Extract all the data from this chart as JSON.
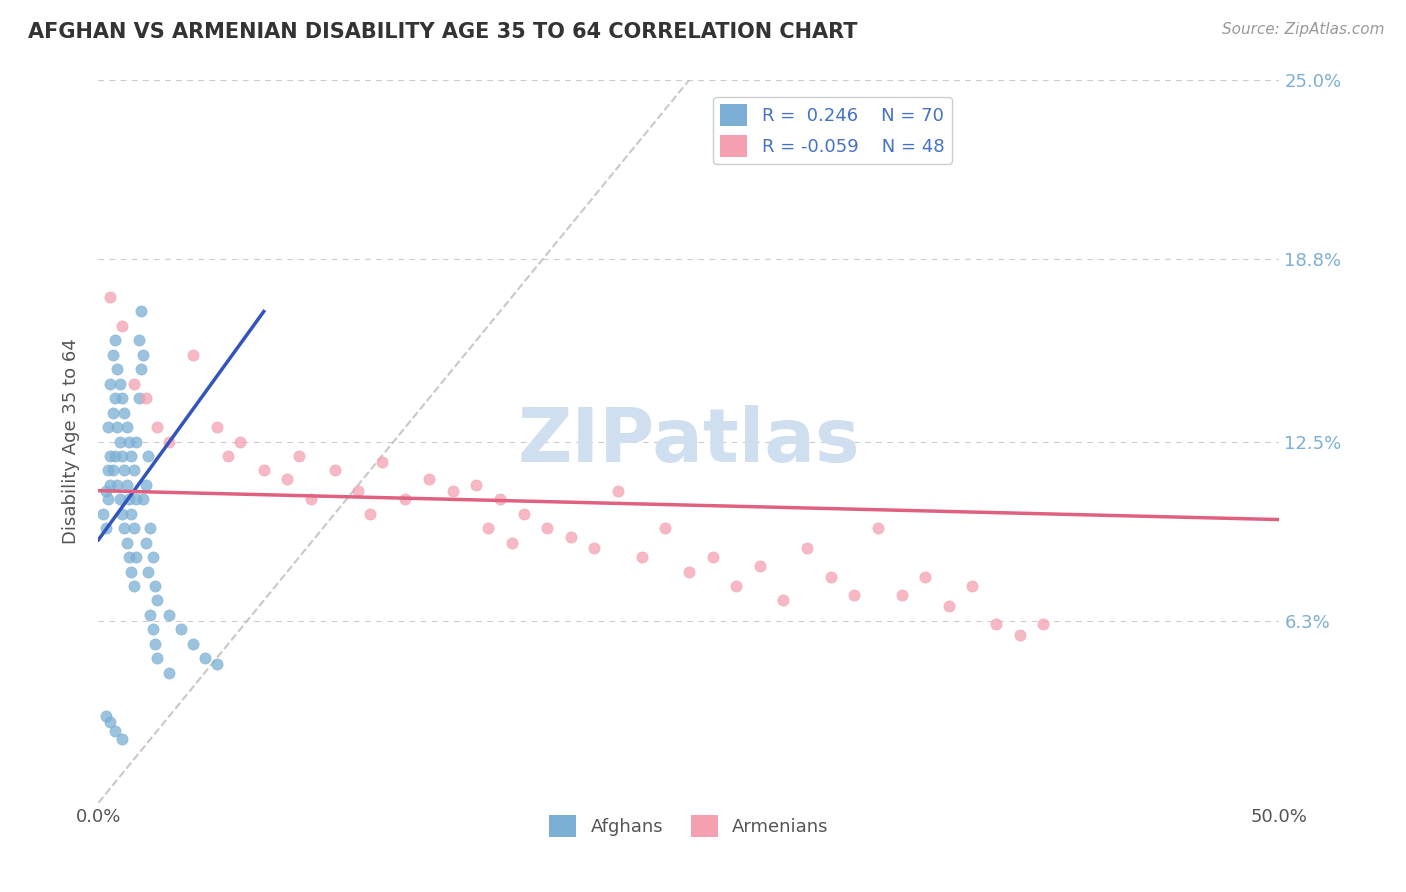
{
  "title": "AFGHAN VS ARMENIAN DISABILITY AGE 35 TO 64 CORRELATION CHART",
  "source_text": "Source: ZipAtlas.com",
  "ylabel": "Disability Age 35 to 64",
  "xlim": [
    0.0,
    0.5
  ],
  "ylim": [
    0.0,
    0.25
  ],
  "ytick_labels": [
    "6.3%",
    "12.5%",
    "18.8%",
    "25.0%"
  ],
  "ytick_positions": [
    0.063,
    0.125,
    0.188,
    0.25
  ],
  "grid_color": "#cccccc",
  "background_color": "#ffffff",
  "watermark_text": "ZIPatlas",
  "watermark_color": "#d0dff0",
  "legend_afghan_r": "R =  0.246",
  "legend_afghan_n": "N = 70",
  "legend_armenian_r": "R = -0.059",
  "legend_armenian_n": "N = 48",
  "afghan_color": "#7bafd4",
  "armenian_color": "#f4a0b0",
  "afghan_line_color": "#3355bb",
  "armenian_line_color": "#e06080",
  "dashed_line_color": "#bbbbbb",
  "afghan_scatter": [
    [
      0.002,
      0.1
    ],
    [
      0.003,
      0.095
    ],
    [
      0.003,
      0.108
    ],
    [
      0.004,
      0.13
    ],
    [
      0.004,
      0.115
    ],
    [
      0.004,
      0.105
    ],
    [
      0.005,
      0.145
    ],
    [
      0.005,
      0.12
    ],
    [
      0.005,
      0.11
    ],
    [
      0.006,
      0.155
    ],
    [
      0.006,
      0.135
    ],
    [
      0.006,
      0.115
    ],
    [
      0.007,
      0.16
    ],
    [
      0.007,
      0.14
    ],
    [
      0.007,
      0.12
    ],
    [
      0.008,
      0.15
    ],
    [
      0.008,
      0.13
    ],
    [
      0.008,
      0.11
    ],
    [
      0.009,
      0.145
    ],
    [
      0.009,
      0.125
    ],
    [
      0.009,
      0.105
    ],
    [
      0.01,
      0.14
    ],
    [
      0.01,
      0.12
    ],
    [
      0.01,
      0.1
    ],
    [
      0.011,
      0.135
    ],
    [
      0.011,
      0.115
    ],
    [
      0.011,
      0.095
    ],
    [
      0.012,
      0.13
    ],
    [
      0.012,
      0.11
    ],
    [
      0.012,
      0.09
    ],
    [
      0.013,
      0.125
    ],
    [
      0.013,
      0.105
    ],
    [
      0.013,
      0.085
    ],
    [
      0.014,
      0.12
    ],
    [
      0.014,
      0.1
    ],
    [
      0.014,
      0.08
    ],
    [
      0.015,
      0.115
    ],
    [
      0.015,
      0.095
    ],
    [
      0.015,
      0.075
    ],
    [
      0.016,
      0.125
    ],
    [
      0.016,
      0.105
    ],
    [
      0.016,
      0.085
    ],
    [
      0.017,
      0.16
    ],
    [
      0.017,
      0.14
    ],
    [
      0.018,
      0.17
    ],
    [
      0.018,
      0.15
    ],
    [
      0.019,
      0.155
    ],
    [
      0.019,
      0.105
    ],
    [
      0.02,
      0.11
    ],
    [
      0.02,
      0.09
    ],
    [
      0.021,
      0.12
    ],
    [
      0.021,
      0.08
    ],
    [
      0.022,
      0.095
    ],
    [
      0.022,
      0.065
    ],
    [
      0.023,
      0.085
    ],
    [
      0.023,
      0.06
    ],
    [
      0.024,
      0.075
    ],
    [
      0.024,
      0.055
    ],
    [
      0.025,
      0.07
    ],
    [
      0.025,
      0.05
    ],
    [
      0.03,
      0.065
    ],
    [
      0.03,
      0.045
    ],
    [
      0.035,
      0.06
    ],
    [
      0.04,
      0.055
    ],
    [
      0.045,
      0.05
    ],
    [
      0.05,
      0.048
    ],
    [
      0.003,
      0.03
    ],
    [
      0.005,
      0.028
    ],
    [
      0.007,
      0.025
    ],
    [
      0.01,
      0.022
    ]
  ],
  "armenian_scatter": [
    [
      0.005,
      0.175
    ],
    [
      0.01,
      0.165
    ],
    [
      0.015,
      0.145
    ],
    [
      0.02,
      0.14
    ],
    [
      0.025,
      0.13
    ],
    [
      0.03,
      0.125
    ],
    [
      0.04,
      0.155
    ],
    [
      0.05,
      0.13
    ],
    [
      0.055,
      0.12
    ],
    [
      0.06,
      0.125
    ],
    [
      0.07,
      0.115
    ],
    [
      0.08,
      0.112
    ],
    [
      0.085,
      0.12
    ],
    [
      0.09,
      0.105
    ],
    [
      0.1,
      0.115
    ],
    [
      0.11,
      0.108
    ],
    [
      0.115,
      0.1
    ],
    [
      0.12,
      0.118
    ],
    [
      0.13,
      0.105
    ],
    [
      0.14,
      0.112
    ],
    [
      0.15,
      0.108
    ],
    [
      0.16,
      0.11
    ],
    [
      0.165,
      0.095
    ],
    [
      0.17,
      0.105
    ],
    [
      0.175,
      0.09
    ],
    [
      0.18,
      0.1
    ],
    [
      0.19,
      0.095
    ],
    [
      0.2,
      0.092
    ],
    [
      0.21,
      0.088
    ],
    [
      0.22,
      0.108
    ],
    [
      0.23,
      0.085
    ],
    [
      0.24,
      0.095
    ],
    [
      0.25,
      0.08
    ],
    [
      0.26,
      0.085
    ],
    [
      0.27,
      0.075
    ],
    [
      0.28,
      0.082
    ],
    [
      0.29,
      0.07
    ],
    [
      0.3,
      0.088
    ],
    [
      0.31,
      0.078
    ],
    [
      0.32,
      0.072
    ],
    [
      0.33,
      0.095
    ],
    [
      0.34,
      0.072
    ],
    [
      0.35,
      0.078
    ],
    [
      0.36,
      0.068
    ],
    [
      0.37,
      0.075
    ],
    [
      0.38,
      0.062
    ],
    [
      0.39,
      0.058
    ],
    [
      0.4,
      0.062
    ]
  ],
  "afghan_line_manual": [
    [
      0.0,
      0.091
    ],
    [
      0.07,
      0.17
    ]
  ],
  "armenian_line_manual": [
    [
      0.0,
      0.108
    ],
    [
      0.5,
      0.098
    ]
  ]
}
